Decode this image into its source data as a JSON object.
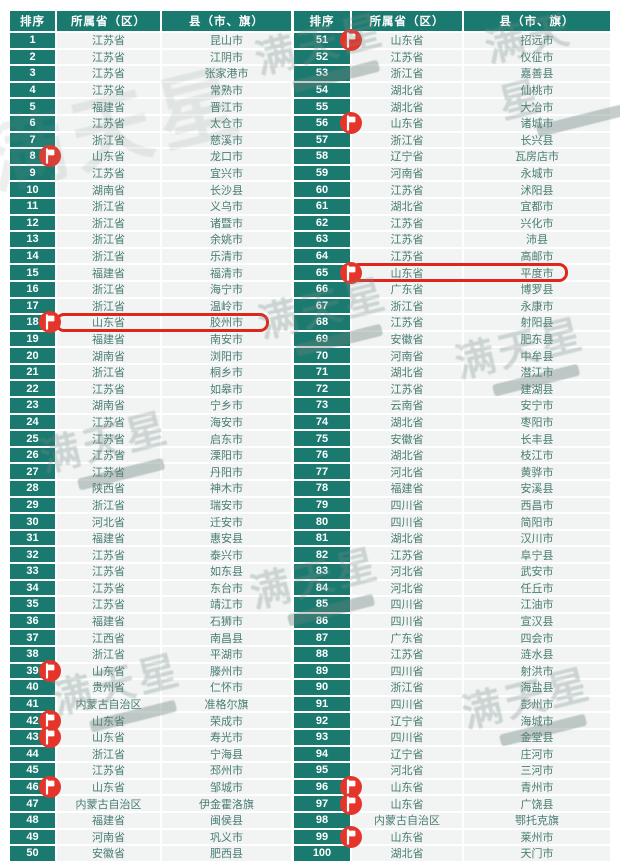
{
  "table": {
    "headers": [
      "排序",
      "所属省（区）",
      "县（市、旗）"
    ],
    "rows": [
      {
        "rank": "1",
        "province": "江苏省",
        "county": "昆山市",
        "pin": false,
        "hl": false
      },
      {
        "rank": "2",
        "province": "江苏省",
        "county": "江阴市",
        "pin": false,
        "hl": false
      },
      {
        "rank": "3",
        "province": "江苏省",
        "county": "张家港市",
        "pin": false,
        "hl": false
      },
      {
        "rank": "4",
        "province": "江苏省",
        "county": "常熟市",
        "pin": false,
        "hl": false
      },
      {
        "rank": "5",
        "province": "福建省",
        "county": "晋江市",
        "pin": false,
        "hl": false
      },
      {
        "rank": "6",
        "province": "江苏省",
        "county": "太仓市",
        "pin": false,
        "hl": false
      },
      {
        "rank": "7",
        "province": "浙江省",
        "county": "慈溪市",
        "pin": false,
        "hl": false
      },
      {
        "rank": "8",
        "province": "山东省",
        "county": "龙口市",
        "pin": true,
        "hl": false
      },
      {
        "rank": "9",
        "province": "江苏省",
        "county": "宜兴市",
        "pin": false,
        "hl": false
      },
      {
        "rank": "10",
        "province": "湖南省",
        "county": "长沙县",
        "pin": false,
        "hl": false
      },
      {
        "rank": "11",
        "province": "浙江省",
        "county": "义乌市",
        "pin": false,
        "hl": false
      },
      {
        "rank": "12",
        "province": "浙江省",
        "county": "诸暨市",
        "pin": false,
        "hl": false
      },
      {
        "rank": "13",
        "province": "浙江省",
        "county": "余姚市",
        "pin": false,
        "hl": false
      },
      {
        "rank": "14",
        "province": "浙江省",
        "county": "乐清市",
        "pin": false,
        "hl": false
      },
      {
        "rank": "15",
        "province": "福建省",
        "county": "福清市",
        "pin": false,
        "hl": false
      },
      {
        "rank": "16",
        "province": "浙江省",
        "county": "海宁市",
        "pin": false,
        "hl": false
      },
      {
        "rank": "17",
        "province": "浙江省",
        "county": "温岭市",
        "pin": false,
        "hl": false
      },
      {
        "rank": "18",
        "province": "山东省",
        "county": "胶州市",
        "pin": true,
        "hl": true
      },
      {
        "rank": "19",
        "province": "福建省",
        "county": "南安市",
        "pin": false,
        "hl": false
      },
      {
        "rank": "20",
        "province": "湖南省",
        "county": "浏阳市",
        "pin": false,
        "hl": false
      },
      {
        "rank": "21",
        "province": "浙江省",
        "county": "桐乡市",
        "pin": false,
        "hl": false
      },
      {
        "rank": "22",
        "province": "江苏省",
        "county": "如皋市",
        "pin": false,
        "hl": false
      },
      {
        "rank": "23",
        "province": "湖南省",
        "county": "宁乡市",
        "pin": false,
        "hl": false
      },
      {
        "rank": "24",
        "province": "江苏省",
        "county": "海安市",
        "pin": false,
        "hl": false
      },
      {
        "rank": "25",
        "province": "江苏省",
        "county": "启东市",
        "pin": false,
        "hl": false
      },
      {
        "rank": "26",
        "province": "江苏省",
        "county": "溧阳市",
        "pin": false,
        "hl": false
      },
      {
        "rank": "27",
        "province": "江苏省",
        "county": "丹阳市",
        "pin": false,
        "hl": false
      },
      {
        "rank": "28",
        "province": "陕西省",
        "county": "神木市",
        "pin": false,
        "hl": false
      },
      {
        "rank": "29",
        "province": "浙江省",
        "county": "瑞安市",
        "pin": false,
        "hl": false
      },
      {
        "rank": "30",
        "province": "河北省",
        "county": "迁安市",
        "pin": false,
        "hl": false
      },
      {
        "rank": "31",
        "province": "福建省",
        "county": "惠安县",
        "pin": false,
        "hl": false
      },
      {
        "rank": "32",
        "province": "江苏省",
        "county": "泰兴市",
        "pin": false,
        "hl": false
      },
      {
        "rank": "33",
        "province": "江苏省",
        "county": "如东县",
        "pin": false,
        "hl": false
      },
      {
        "rank": "34",
        "province": "江苏省",
        "county": "东台市",
        "pin": false,
        "hl": false
      },
      {
        "rank": "35",
        "province": "江苏省",
        "county": "靖江市",
        "pin": false,
        "hl": false
      },
      {
        "rank": "36",
        "province": "福建省",
        "county": "石狮市",
        "pin": false,
        "hl": false
      },
      {
        "rank": "37",
        "province": "江西省",
        "county": "南昌县",
        "pin": false,
        "hl": false
      },
      {
        "rank": "38",
        "province": "浙江省",
        "county": "平湖市",
        "pin": false,
        "hl": false
      },
      {
        "rank": "39",
        "province": "山东省",
        "county": "滕州市",
        "pin": true,
        "hl": false
      },
      {
        "rank": "40",
        "province": "贵州省",
        "county": "仁怀市",
        "pin": false,
        "hl": false
      },
      {
        "rank": "41",
        "province": "内蒙古自治区",
        "county": "准格尔旗",
        "pin": false,
        "hl": false
      },
      {
        "rank": "42",
        "province": "山东省",
        "county": "荣成市",
        "pin": true,
        "hl": false
      },
      {
        "rank": "43",
        "province": "山东省",
        "county": "寿光市",
        "pin": true,
        "hl": false
      },
      {
        "rank": "44",
        "province": "浙江省",
        "county": "宁海县",
        "pin": false,
        "hl": false
      },
      {
        "rank": "45",
        "province": "江苏省",
        "county": "邳州市",
        "pin": false,
        "hl": false
      },
      {
        "rank": "46",
        "province": "山东省",
        "county": "邹城市",
        "pin": true,
        "hl": false
      },
      {
        "rank": "47",
        "province": "内蒙古自治区",
        "county": "伊金霍洛旗",
        "pin": false,
        "hl": false
      },
      {
        "rank": "48",
        "province": "福建省",
        "county": "闽侯县",
        "pin": false,
        "hl": false
      },
      {
        "rank": "49",
        "province": "河南省",
        "county": "巩义市",
        "pin": false,
        "hl": false
      },
      {
        "rank": "50",
        "province": "安徽省",
        "county": "肥西县",
        "pin": false,
        "hl": false
      },
      {
        "rank": "51",
        "province": "山东省",
        "county": "招远市",
        "pin": true,
        "hl": false
      },
      {
        "rank": "52",
        "province": "江苏省",
        "county": "仪征市",
        "pin": false,
        "hl": false
      },
      {
        "rank": "53",
        "province": "浙江省",
        "county": "嘉善县",
        "pin": false,
        "hl": false
      },
      {
        "rank": "54",
        "province": "湖北省",
        "county": "仙桃市",
        "pin": false,
        "hl": false
      },
      {
        "rank": "55",
        "province": "湖北省",
        "county": "大冶市",
        "pin": false,
        "hl": false
      },
      {
        "rank": "56",
        "province": "山东省",
        "county": "诸城市",
        "pin": true,
        "hl": false
      },
      {
        "rank": "57",
        "province": "浙江省",
        "county": "长兴县",
        "pin": false,
        "hl": false
      },
      {
        "rank": "58",
        "province": "辽宁省",
        "county": "瓦房店市",
        "pin": false,
        "hl": false
      },
      {
        "rank": "59",
        "province": "河南省",
        "county": "永城市",
        "pin": false,
        "hl": false
      },
      {
        "rank": "60",
        "province": "江苏省",
        "county": "沭阳县",
        "pin": false,
        "hl": false
      },
      {
        "rank": "61",
        "province": "湖北省",
        "county": "宜都市",
        "pin": false,
        "hl": false
      },
      {
        "rank": "62",
        "province": "江苏省",
        "county": "兴化市",
        "pin": false,
        "hl": false
      },
      {
        "rank": "63",
        "province": "江苏省",
        "county": "沛县",
        "pin": false,
        "hl": false
      },
      {
        "rank": "64",
        "province": "江苏省",
        "county": "高邮市",
        "pin": false,
        "hl": false
      },
      {
        "rank": "65",
        "province": "山东省",
        "county": "平度市",
        "pin": true,
        "hl": true
      },
      {
        "rank": "66",
        "province": "广东省",
        "county": "博罗县",
        "pin": false,
        "hl": false
      },
      {
        "rank": "67",
        "province": "浙江省",
        "county": "永康市",
        "pin": false,
        "hl": false
      },
      {
        "rank": "68",
        "province": "江苏省",
        "county": "射阳县",
        "pin": false,
        "hl": false
      },
      {
        "rank": "69",
        "province": "安徽省",
        "county": "肥东县",
        "pin": false,
        "hl": false
      },
      {
        "rank": "70",
        "province": "河南省",
        "county": "中牟县",
        "pin": false,
        "hl": false
      },
      {
        "rank": "71",
        "province": "湖北省",
        "county": "潜江市",
        "pin": false,
        "hl": false
      },
      {
        "rank": "72",
        "province": "江苏省",
        "county": "建湖县",
        "pin": false,
        "hl": false
      },
      {
        "rank": "73",
        "province": "云南省",
        "county": "安宁市",
        "pin": false,
        "hl": false
      },
      {
        "rank": "74",
        "province": "湖北省",
        "county": "枣阳市",
        "pin": false,
        "hl": false
      },
      {
        "rank": "75",
        "province": "安徽省",
        "county": "长丰县",
        "pin": false,
        "hl": false
      },
      {
        "rank": "76",
        "province": "湖北省",
        "county": "枝江市",
        "pin": false,
        "hl": false
      },
      {
        "rank": "77",
        "province": "河北省",
        "county": "黄骅市",
        "pin": false,
        "hl": false
      },
      {
        "rank": "78",
        "province": "福建省",
        "county": "安溪县",
        "pin": false,
        "hl": false
      },
      {
        "rank": "79",
        "province": "四川省",
        "county": "西昌市",
        "pin": false,
        "hl": false
      },
      {
        "rank": "80",
        "province": "四川省",
        "county": "简阳市",
        "pin": false,
        "hl": false
      },
      {
        "rank": "81",
        "province": "湖北省",
        "county": "汉川市",
        "pin": false,
        "hl": false
      },
      {
        "rank": "82",
        "province": "江苏省",
        "county": "阜宁县",
        "pin": false,
        "hl": false
      },
      {
        "rank": "83",
        "province": "河北省",
        "county": "武安市",
        "pin": false,
        "hl": false
      },
      {
        "rank": "84",
        "province": "河北省",
        "county": "任丘市",
        "pin": false,
        "hl": false
      },
      {
        "rank": "85",
        "province": "四川省",
        "county": "江油市",
        "pin": false,
        "hl": false
      },
      {
        "rank": "86",
        "province": "四川省",
        "county": "宣汉县",
        "pin": false,
        "hl": false
      },
      {
        "rank": "87",
        "province": "广东省",
        "county": "四会市",
        "pin": false,
        "hl": false
      },
      {
        "rank": "88",
        "province": "江苏省",
        "county": "涟水县",
        "pin": false,
        "hl": false
      },
      {
        "rank": "89",
        "province": "四川省",
        "county": "射洪市",
        "pin": false,
        "hl": false
      },
      {
        "rank": "90",
        "province": "浙江省",
        "county": "海盐县",
        "pin": false,
        "hl": false
      },
      {
        "rank": "91",
        "province": "四川省",
        "county": "彭州市",
        "pin": false,
        "hl": false
      },
      {
        "rank": "92",
        "province": "辽宁省",
        "county": "海城市",
        "pin": false,
        "hl": false
      },
      {
        "rank": "93",
        "province": "四川省",
        "county": "金堂县",
        "pin": false,
        "hl": false
      },
      {
        "rank": "94",
        "province": "辽宁省",
        "county": "庄河市",
        "pin": false,
        "hl": false
      },
      {
        "rank": "95",
        "province": "河北省",
        "county": "三河市",
        "pin": false,
        "hl": false
      },
      {
        "rank": "96",
        "province": "山东省",
        "county": "青州市",
        "pin": true,
        "hl": false
      },
      {
        "rank": "97",
        "province": "山东省",
        "county": "广饶县",
        "pin": true,
        "hl": false
      },
      {
        "rank": "98",
        "province": "内蒙古自治区",
        "county": "鄂托克旗",
        "pin": false,
        "hl": false
      },
      {
        "rank": "99",
        "province": "山东省",
        "county": "莱州市",
        "pin": true,
        "hl": false
      },
      {
        "rank": "100",
        "province": "湖北省",
        "county": "天门市",
        "pin": false,
        "hl": false
      }
    ]
  },
  "watermark": {
    "text": "满天星"
  },
  "colors": {
    "teal": "#1b7a70",
    "rowbg": "#f1f4f3",
    "txt": "#4a7c73",
    "pin": "#e5352b",
    "hl": "#e0261c"
  }
}
